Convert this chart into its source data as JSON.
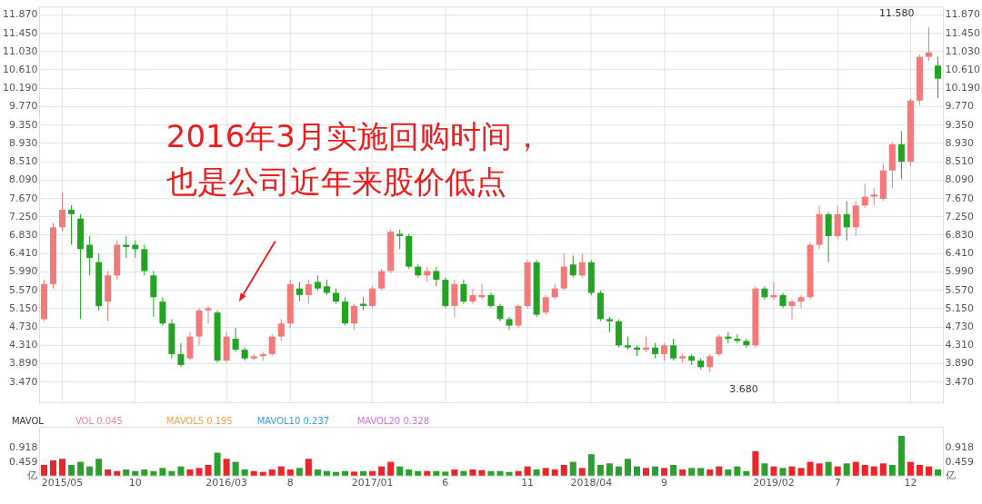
{
  "chart_data": [
    {
      "type": "candlestick",
      "categories": [
        null,
        null,
        "2015/05",
        null,
        null,
        null,
        null,
        null,
        null,
        null,
        "10",
        null,
        null,
        null,
        null,
        null,
        null,
        null,
        null,
        null,
        "2016/03",
        null,
        null,
        null,
        null,
        null,
        null,
        "8",
        null,
        null,
        null,
        null,
        null,
        null,
        null,
        null,
        "2017/01",
        null,
        null,
        null,
        null,
        null,
        null,
        null,
        "6",
        null,
        null,
        null,
        null,
        null,
        null,
        null,
        null,
        "11",
        null,
        null,
        null,
        null,
        null,
        null,
        "2018/04",
        null,
        null,
        null,
        null,
        null,
        null,
        null,
        "9",
        null,
        null,
        null,
        null,
        null,
        null,
        null,
        null,
        null,
        null,
        null,
        "2019/02",
        null,
        null,
        null,
        null,
        null,
        null,
        "7",
        null,
        null,
        null,
        null,
        null,
        null,
        null,
        "12",
        null,
        null,
        null
      ],
      "ohlc": [
        [
          4.9,
          5.8,
          4.85,
          5.7
        ],
        [
          5.7,
          7.1,
          5.6,
          7.0
        ],
        [
          7.0,
          7.8,
          6.9,
          7.4
        ],
        [
          7.4,
          7.5,
          6.6,
          7.3
        ],
        [
          7.2,
          7.3,
          4.9,
          6.5
        ],
        [
          6.6,
          6.8,
          5.9,
          6.3
        ],
        [
          6.2,
          6.4,
          5.1,
          5.2
        ],
        [
          5.3,
          6.0,
          4.85,
          5.9
        ],
        [
          5.9,
          6.7,
          5.8,
          6.6
        ],
        [
          6.6,
          6.8,
          6.3,
          6.55
        ],
        [
          6.6,
          6.7,
          6.3,
          6.5
        ],
        [
          6.5,
          6.6,
          5.9,
          6.0
        ],
        [
          5.9,
          6.0,
          4.95,
          5.4
        ],
        [
          5.3,
          5.4,
          4.75,
          4.8
        ],
        [
          4.8,
          4.9,
          4.0,
          4.1
        ],
        [
          4.1,
          4.35,
          3.8,
          3.85
        ],
        [
          4.0,
          4.6,
          3.95,
          4.5
        ],
        [
          4.5,
          5.15,
          4.3,
          5.1
        ],
        [
          5.1,
          5.2,
          4.8,
          5.15
        ],
        [
          5.05,
          5.1,
          3.9,
          3.95
        ],
        [
          3.95,
          4.6,
          3.9,
          4.5
        ],
        [
          4.45,
          4.7,
          4.15,
          4.2
        ],
        [
          4.2,
          4.25,
          3.95,
          4.0
        ],
        [
          4.0,
          4.1,
          3.95,
          4.05
        ],
        [
          4.05,
          4.15,
          3.95,
          4.1
        ],
        [
          4.1,
          4.55,
          4.05,
          4.5
        ],
        [
          4.5,
          4.9,
          4.4,
          4.8
        ],
        [
          4.8,
          5.8,
          4.7,
          5.7
        ],
        [
          5.6,
          5.75,
          5.3,
          5.45
        ],
        [
          5.45,
          5.8,
          5.25,
          5.7
        ],
        [
          5.75,
          5.9,
          5.55,
          5.6
        ],
        [
          5.65,
          5.8,
          5.45,
          5.5
        ],
        [
          5.5,
          5.6,
          5.25,
          5.3
        ],
        [
          5.3,
          5.4,
          4.75,
          4.8
        ],
        [
          4.8,
          5.25,
          4.65,
          5.2
        ],
        [
          5.25,
          5.4,
          5.1,
          5.2
        ],
        [
          5.2,
          5.65,
          5.15,
          5.6
        ],
        [
          5.6,
          6.05,
          5.55,
          6.0
        ],
        [
          6.0,
          6.95,
          5.95,
          6.9
        ],
        [
          6.85,
          6.95,
          6.5,
          6.8
        ],
        [
          6.8,
          6.85,
          6.05,
          6.1
        ],
        [
          6.1,
          6.15,
          5.85,
          5.9
        ],
        [
          5.9,
          6.1,
          5.75,
          6.0
        ],
        [
          6.0,
          6.1,
          5.65,
          5.8
        ],
        [
          5.8,
          5.85,
          5.15,
          5.2
        ],
        [
          5.2,
          5.8,
          4.95,
          5.7
        ],
        [
          5.7,
          5.8,
          5.25,
          5.3
        ],
        [
          5.3,
          5.6,
          5.25,
          5.45
        ],
        [
          5.4,
          5.7,
          5.35,
          5.45
        ],
        [
          5.45,
          5.5,
          5.15,
          5.2
        ],
        [
          5.2,
          5.25,
          4.85,
          4.9
        ],
        [
          4.9,
          4.95,
          4.65,
          4.75
        ],
        [
          4.75,
          5.25,
          4.7,
          5.2
        ],
        [
          5.2,
          6.25,
          5.15,
          6.2
        ],
        [
          6.2,
          6.25,
          4.95,
          5.0
        ],
        [
          5.05,
          5.45,
          5.0,
          5.4
        ],
        [
          5.4,
          5.7,
          5.35,
          5.6
        ],
        [
          5.6,
          6.4,
          5.55,
          6.1
        ],
        [
          6.15,
          6.35,
          5.85,
          5.9
        ],
        [
          5.9,
          6.4,
          5.85,
          6.2
        ],
        [
          6.2,
          6.25,
          5.45,
          5.5
        ],
        [
          5.5,
          5.55,
          4.85,
          4.9
        ],
        [
          4.9,
          4.95,
          4.6,
          4.85
        ],
        [
          4.85,
          4.9,
          4.25,
          4.3
        ],
        [
          4.3,
          4.5,
          4.2,
          4.25
        ],
        [
          4.25,
          4.3,
          4.05,
          4.2
        ],
        [
          4.2,
          4.5,
          4.15,
          4.25
        ],
        [
          4.25,
          4.35,
          4.0,
          4.1
        ],
        [
          4.1,
          4.35,
          3.95,
          4.3
        ],
        [
          4.3,
          4.45,
          3.95,
          4.0
        ],
        [
          4.0,
          4.1,
          3.9,
          4.05
        ],
        [
          4.05,
          4.1,
          3.85,
          3.95
        ],
        [
          3.95,
          4.0,
          3.75,
          3.8
        ],
        [
          3.8,
          4.1,
          3.68,
          4.05
        ],
        [
          4.1,
          4.55,
          4.05,
          4.5
        ],
        [
          4.5,
          4.6,
          4.35,
          4.45
        ],
        [
          4.45,
          4.55,
          4.35,
          4.4
        ],
        [
          4.4,
          4.45,
          4.25,
          4.3
        ],
        [
          4.3,
          5.65,
          4.25,
          5.6
        ],
        [
          5.6,
          5.65,
          5.35,
          5.4
        ],
        [
          5.4,
          5.75,
          5.35,
          5.45
        ],
        [
          5.45,
          5.5,
          5.15,
          5.2
        ],
        [
          5.2,
          5.35,
          4.9,
          5.3
        ],
        [
          5.3,
          5.45,
          5.15,
          5.4
        ],
        [
          5.4,
          6.65,
          5.35,
          6.6
        ],
        [
          6.6,
          7.5,
          6.5,
          7.3
        ],
        [
          7.3,
          7.35,
          6.2,
          6.8
        ],
        [
          6.8,
          7.5,
          6.75,
          7.3
        ],
        [
          7.3,
          7.6,
          6.7,
          7.0
        ],
        [
          7.0,
          7.6,
          6.8,
          7.5
        ],
        [
          7.5,
          8.0,
          7.45,
          7.7
        ],
        [
          7.7,
          7.9,
          7.5,
          7.75
        ],
        [
          7.65,
          8.45,
          7.6,
          8.3
        ],
        [
          8.3,
          8.95,
          7.9,
          8.9
        ],
        [
          8.9,
          9.2,
          8.1,
          8.5
        ],
        [
          8.5,
          9.95,
          8.4,
          9.9
        ],
        [
          9.9,
          10.95,
          9.8,
          10.9
        ],
        [
          10.9,
          11.58,
          10.8,
          11.0
        ],
        [
          10.7,
          10.9,
          9.95,
          10.4
        ]
      ],
      "colors": [
        "#f27a7a",
        "#f27a7a",
        "#f27a7a",
        "#22a322",
        "#22a322",
        "#22a322",
        "#22a322",
        "#f27a7a",
        "#f27a7a",
        "#22a322",
        "#22a322",
        "#22a322",
        "#22a322",
        "#22a322",
        "#22a322",
        "#22a322",
        "#f27a7a",
        "#f27a7a",
        "#f27a7a",
        "#22a322",
        "#f27a7a",
        "#22a322",
        "#22a322",
        "#f27a7a",
        "#f27a7a",
        "#f27a7a",
        "#f27a7a",
        "#f27a7a",
        "#22a322",
        "#f27a7a",
        "#22a322",
        "#22a322",
        "#22a322",
        "#22a322",
        "#f27a7a",
        "#22a322",
        "#f27a7a",
        "#f27a7a",
        "#f27a7a",
        "#22a322",
        "#22a322",
        "#22a322",
        "#f27a7a",
        "#22a322",
        "#22a322",
        "#f27a7a",
        "#22a322",
        "#f27a7a",
        "#f27a7a",
        "#22a322",
        "#22a322",
        "#22a322",
        "#f27a7a",
        "#f27a7a",
        "#22a322",
        "#f27a7a",
        "#f27a7a",
        "#f27a7a",
        "#22a322",
        "#f27a7a",
        "#22a322",
        "#22a322",
        "#22a322",
        "#22a322",
        "#22a322",
        "#22a322",
        "#f27a7a",
        "#22a322",
        "#f27a7a",
        "#22a322",
        "#f27a7a",
        "#22a322",
        "#22a322",
        "#f27a7a",
        "#f27a7a",
        "#22a322",
        "#22a322",
        "#22a322",
        "#f27a7a",
        "#22a322",
        "#f27a7a",
        "#22a322",
        "#f27a7a",
        "#f27a7a",
        "#f27a7a",
        "#f27a7a",
        "#22a322",
        "#f27a7a",
        "#22a322",
        "#f27a7a",
        "#f27a7a",
        "#f27a7a",
        "#f27a7a",
        "#f27a7a",
        "#22a322",
        "#f27a7a",
        "#f27a7a",
        "#f27a7a",
        "#22a322"
      ],
      "ylim": [
        3.0,
        12.05
      ],
      "yticks": [
        {
          "value": 3.47,
          "label": "3.470"
        },
        {
          "value": 3.89,
          "label": "3.890"
        },
        {
          "value": 4.31,
          "label": "4.310"
        },
        {
          "value": 4.73,
          "label": "4.730"
        },
        {
          "value": 5.15,
          "label": "5.150"
        },
        {
          "value": 5.57,
          "label": "5.570"
        },
        {
          "value": 5.99,
          "label": "5.990"
        },
        {
          "value": 6.41,
          "label": "6.410"
        },
        {
          "value": 6.83,
          "label": "6.830"
        },
        {
          "value": 7.25,
          "label": "7.250"
        },
        {
          "value": 7.67,
          "label": "7.670"
        },
        {
          "value": 8.09,
          "label": "8.090"
        },
        {
          "value": 8.51,
          "label": "8.510"
        },
        {
          "value": 8.93,
          "label": "8.930"
        },
        {
          "value": 9.35,
          "label": "9.350"
        },
        {
          "value": 9.77,
          "label": "9.770"
        },
        {
          "value": 10.19,
          "label": "10.190"
        },
        {
          "value": 10.61,
          "label": "10.610"
        },
        {
          "value": 11.03,
          "label": "11.030"
        },
        {
          "value": 11.45,
          "label": "11.450"
        },
        {
          "value": 11.87,
          "label": "11.870"
        }
      ],
      "y2lim": [
        3.0,
        12.05
      ],
      "y2ticks": [
        {
          "value": 3.47,
          "label": "3.470"
        },
        {
          "value": 3.89,
          "label": "3.890"
        },
        {
          "value": 4.31,
          "label": "4.310"
        },
        {
          "value": 4.73,
          "label": "4.730"
        },
        {
          "value": 5.15,
          "label": "5.150"
        },
        {
          "value": 5.57,
          "label": "5.570"
        },
        {
          "value": 5.99,
          "label": "5.990"
        },
        {
          "value": 6.41,
          "label": "6.410"
        },
        {
          "value": 6.83,
          "label": "6.830"
        },
        {
          "value": 7.25,
          "label": "7.250"
        },
        {
          "value": 7.67,
          "label": "7.670"
        },
        {
          "value": 8.09,
          "label": "8.090"
        },
        {
          "value": 8.51,
          "label": "8.510"
        },
        {
          "value": 8.93,
          "label": "8.930"
        },
        {
          "value": 9.35,
          "label": "9.350"
        },
        {
          "value": 9.77,
          "label": "9.770"
        },
        {
          "value": 10.19,
          "label": "10.190"
        },
        {
          "value": 10.61,
          "label": "10.610"
        },
        {
          "value": 11.03,
          "label": "11.030"
        },
        {
          "value": 11.45,
          "label": "11.450"
        },
        {
          "value": 11.87,
          "label": "11.870"
        }
      ],
      "tick_labels": "y",
      "grid": true,
      "annotations": [
        "11.580",
        "3.680",
        "2016年3月实施回购时间，也是公司近年来股价低点"
      ]
    },
    {
      "type": "bar",
      "categories": [
        null,
        null,
        "2015/05",
        null,
        null,
        null,
        null,
        null,
        null,
        null,
        "10",
        null,
        null,
        null,
        null,
        null,
        null,
        null,
        null,
        null,
        "2016/03",
        null,
        null,
        null,
        null,
        null,
        null,
        "8",
        null,
        null,
        null,
        null,
        null,
        null,
        null,
        null,
        "2017/01",
        null,
        null,
        null,
        null,
        null,
        null,
        null,
        "6",
        null,
        null,
        null,
        null,
        null,
        null,
        null,
        null,
        "11",
        null,
        null,
        null,
        null,
        null,
        null,
        "2018/04",
        null,
        null,
        null,
        null,
        null,
        null,
        null,
        "9",
        null,
        null,
        null,
        null,
        null,
        null,
        null,
        null,
        null,
        null,
        null,
        "2019/02",
        null,
        null,
        null,
        null,
        null,
        null,
        "7",
        null,
        null,
        null,
        null,
        null,
        null,
        null,
        "12",
        null,
        null,
        null
      ],
      "values": [
        0.35,
        0.5,
        0.55,
        0.35,
        0.45,
        0.3,
        0.55,
        0.2,
        0.15,
        0.2,
        0.15,
        0.2,
        0.15,
        0.25,
        0.15,
        0.3,
        0.2,
        0.25,
        0.35,
        0.75,
        0.55,
        0.45,
        0.2,
        0.15,
        0.12,
        0.2,
        0.3,
        0.2,
        0.25,
        0.55,
        0.2,
        0.15,
        0.12,
        0.15,
        0.13,
        0.15,
        0.15,
        0.3,
        0.45,
        0.3,
        0.2,
        0.15,
        0.15,
        0.15,
        0.13,
        0.2,
        0.15,
        0.2,
        0.18,
        0.15,
        0.15,
        0.12,
        0.15,
        0.3,
        0.2,
        0.25,
        0.2,
        0.35,
        0.45,
        0.25,
        0.7,
        0.35,
        0.4,
        0.3,
        0.55,
        0.3,
        0.25,
        0.3,
        0.25,
        0.35,
        0.2,
        0.25,
        0.25,
        0.2,
        0.3,
        0.2,
        0.3,
        0.15,
        0.8,
        0.4,
        0.3,
        0.25,
        0.3,
        0.25,
        0.45,
        0.4,
        0.45,
        0.3,
        0.4,
        0.45,
        0.35,
        0.3,
        0.4,
        0.35,
        1.3,
        0.45,
        0.35,
        0.3,
        0.2
      ],
      "colors": [
        "#e8262b",
        "#e8262b",
        "#e8262b",
        "#2ca02c",
        "#2ca02c",
        "#2ca02c",
        "#2ca02c",
        "#e8262b",
        "#e8262b",
        "#2ca02c",
        "#2ca02c",
        "#2ca02c",
        "#2ca02c",
        "#2ca02c",
        "#2ca02c",
        "#2ca02c",
        "#e8262b",
        "#e8262b",
        "#e8262b",
        "#2ca02c",
        "#e8262b",
        "#2ca02c",
        "#2ca02c",
        "#e8262b",
        "#e8262b",
        "#e8262b",
        "#e8262b",
        "#e8262b",
        "#2ca02c",
        "#e8262b",
        "#2ca02c",
        "#2ca02c",
        "#2ca02c",
        "#2ca02c",
        "#e8262b",
        "#2ca02c",
        "#e8262b",
        "#e8262b",
        "#e8262b",
        "#2ca02c",
        "#2ca02c",
        "#2ca02c",
        "#e8262b",
        "#2ca02c",
        "#2ca02c",
        "#e8262b",
        "#2ca02c",
        "#e8262b",
        "#e8262b",
        "#2ca02c",
        "#2ca02c",
        "#2ca02c",
        "#e8262b",
        "#e8262b",
        "#2ca02c",
        "#e8262b",
        "#e8262b",
        "#e8262b",
        "#2ca02c",
        "#e8262b",
        "#2ca02c",
        "#2ca02c",
        "#2ca02c",
        "#2ca02c",
        "#2ca02c",
        "#2ca02c",
        "#e8262b",
        "#2ca02c",
        "#e8262b",
        "#2ca02c",
        "#e8262b",
        "#2ca02c",
        "#2ca02c",
        "#e8262b",
        "#e8262b",
        "#2ca02c",
        "#2ca02c",
        "#2ca02c",
        "#e8262b",
        "#2ca02c",
        "#e8262b",
        "#2ca02c",
        "#e8262b",
        "#e8262b",
        "#e8262b",
        "#e8262b",
        "#2ca02c",
        "#e8262b",
        "#2ca02c",
        "#e8262b",
        "#e8262b",
        "#e8262b",
        "#e8262b",
        "#2ca02c",
        "#2ca02c",
        "#e8262b",
        "#e8262b",
        "#e8262b",
        "#2ca02c"
      ],
      "ylim": [
        0,
        1.6
      ],
      "yticks": [
        {
          "value": 0,
          "label": "亿"
        },
        {
          "value": 0.459,
          "label": "0.459"
        },
        {
          "value": 0.918,
          "label": "0.918"
        }
      ],
      "y2lim": [
        0,
        1.6
      ],
      "y2ticks": [
        {
          "value": 0,
          "label": "亿"
        },
        {
          "value": 0.459,
          "label": "0.459"
        },
        {
          "value": 0.918,
          "label": "0.918"
        }
      ],
      "grid": false,
      "annotations": [
        "MAVOL",
        "VOL 0.045",
        "MAVOL5 0.195",
        "MAVOL10 0.237",
        "MAVOL20 0.328"
      ]
    }
  ]
}
